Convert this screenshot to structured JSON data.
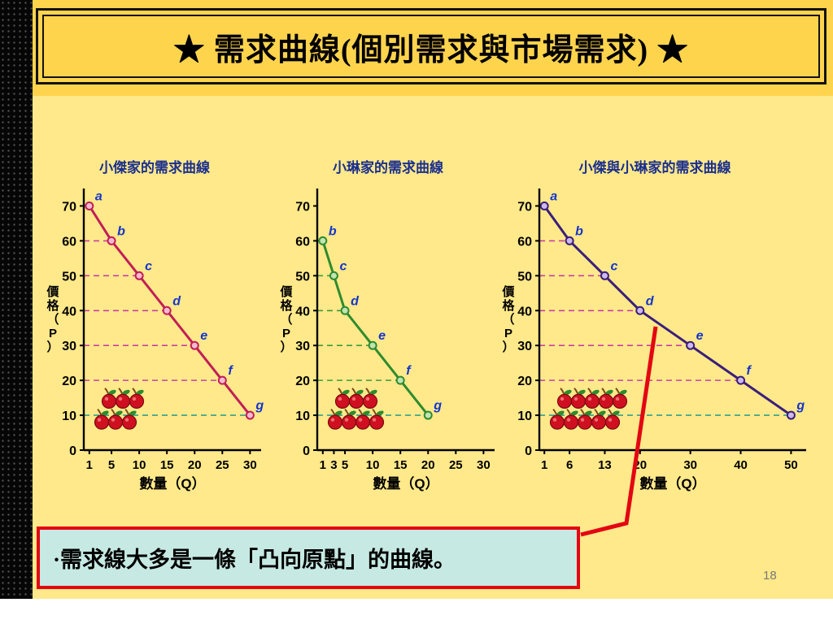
{
  "slide": {
    "title": "★ 需求曲線(個別需求與市場需求) ★",
    "page_number": "18"
  },
  "note": {
    "text": "·需求線大多是一條「凸向原點」的曲線。"
  },
  "colors": {
    "band": "#FFD44D",
    "body": "#FFE98A",
    "note_bg": "#C6E9E3",
    "note_border": "#E30613",
    "callout": "#E30613",
    "chart_title": "#1B2F8E",
    "point_label": "#1535CC"
  },
  "chart_data": [
    {
      "type": "line",
      "title": "小傑家的需求曲線",
      "xlabel": "數量（Q）",
      "ylabel": "價格（P）",
      "x_ticks": [
        1,
        5,
        10,
        15,
        20,
        25,
        30
      ],
      "y_ticks": [
        0,
        10,
        20,
        30,
        40,
        50,
        60,
        70
      ],
      "x_max": 32,
      "y_max": 75,
      "points": [
        {
          "label": "a",
          "q": 1,
          "p": 70
        },
        {
          "label": "b",
          "q": 5,
          "p": 60
        },
        {
          "label": "c",
          "q": 10,
          "p": 50
        },
        {
          "label": "d",
          "q": 15,
          "p": 40
        },
        {
          "label": "e",
          "q": 20,
          "p": 30
        },
        {
          "label": "f",
          "q": 25,
          "p": 20
        },
        {
          "label": "g",
          "q": 30,
          "p": 10
        }
      ],
      "curve_color": "#C21E56",
      "marker_fill": "#F3BBD0",
      "dash_color": "#C93FA6",
      "dash_color_last": "#2FA08E",
      "apples": 6
    },
    {
      "type": "line",
      "title": "小琳家的需求曲線",
      "xlabel": "數量（Q）",
      "ylabel": "價格（P）",
      "x_ticks": [
        1,
        3,
        5,
        10,
        15,
        20,
        25,
        30
      ],
      "y_ticks": [
        0,
        10,
        20,
        30,
        40,
        50,
        60,
        70
      ],
      "x_max": 32,
      "y_max": 75,
      "points": [
        {
          "label": "b",
          "q": 1,
          "p": 60
        },
        {
          "label": "c",
          "q": 3,
          "p": 50
        },
        {
          "label": "d",
          "q": 5,
          "p": 40
        },
        {
          "label": "e",
          "q": 10,
          "p": 30
        },
        {
          "label": "f",
          "q": 15,
          "p": 20
        },
        {
          "label": "g",
          "q": 20,
          "p": 10
        }
      ],
      "curve_color": "#2E8B2E",
      "marker_fill": "#C2E4B2",
      "dash_color": "#3C9B3C",
      "dash_color_last": "#2FA08E",
      "apples": 7
    },
    {
      "type": "line",
      "title": "小傑與小琳家的需求曲線",
      "xlabel": "數量（Q）",
      "ylabel": "價格（P）",
      "x_ticks": [
        1,
        6,
        13,
        20,
        30,
        40,
        50
      ],
      "y_ticks": [
        0,
        10,
        20,
        30,
        40,
        50,
        60,
        70
      ],
      "x_max": 53,
      "y_max": 75,
      "points": [
        {
          "label": "a",
          "q": 1,
          "p": 70
        },
        {
          "label": "b",
          "q": 6,
          "p": 60
        },
        {
          "label": "c",
          "q": 13,
          "p": 50
        },
        {
          "label": "d",
          "q": 20,
          "p": 40
        },
        {
          "label": "e",
          "q": 30,
          "p": 30
        },
        {
          "label": "f",
          "q": 40,
          "p": 20
        },
        {
          "label": "g",
          "q": 50,
          "p": 10
        }
      ],
      "curve_color": "#3B1E7A",
      "marker_fill": "#CDBAE9",
      "dash_color": "#C93FA6",
      "dash_color_last": "#2FA08E",
      "apples": 10
    }
  ]
}
